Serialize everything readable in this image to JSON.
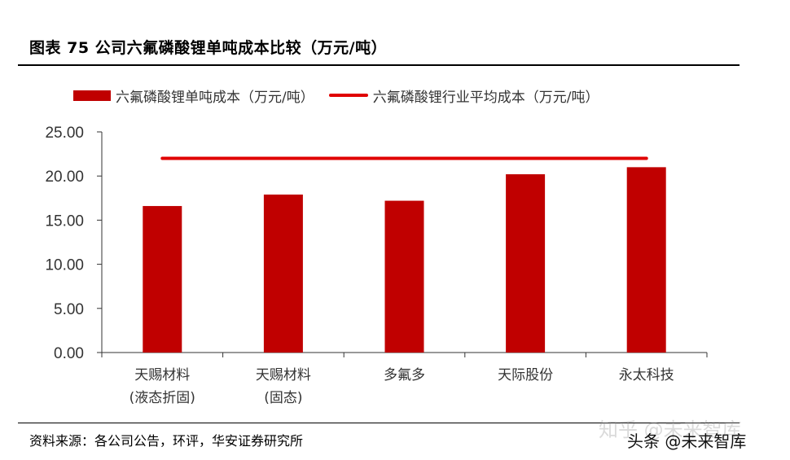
{
  "figure": {
    "title": "图表 75  公司六氟磷酸锂单吨成本比较（万元/吨）",
    "source": "资料来源：各公司公告，环评，华安证券研究所",
    "watermark": "知乎 @未来智库",
    "brand": "头条 @未来智库"
  },
  "colors": {
    "bar": "#c00000",
    "avg_line": "#e00000"
  },
  "chart_data": {
    "type": "bar",
    "categories": [
      [
        "天赐材料",
        "(液态折固)"
      ],
      [
        "天赐材料",
        "(固态)"
      ],
      [
        "多氟多"
      ],
      [
        "天际股份"
      ],
      [
        "永太科技"
      ]
    ],
    "series": [
      {
        "name": "六氟磷酸锂单吨成本（万元/吨）",
        "type": "bar",
        "values": [
          16.6,
          17.9,
          17.2,
          20.2,
          21.0
        ]
      },
      {
        "name": "六氟磷酸锂行业平均成本（万元/吨）",
        "type": "line",
        "values": [
          22.0,
          22.0,
          22.0,
          22.0,
          22.0
        ]
      }
    ],
    "ylim": [
      0,
      25
    ],
    "yticks": [
      "0.00",
      "5.00",
      "10.00",
      "15.00",
      "20.00",
      "25.00"
    ],
    "grid": false,
    "legend": "top"
  }
}
